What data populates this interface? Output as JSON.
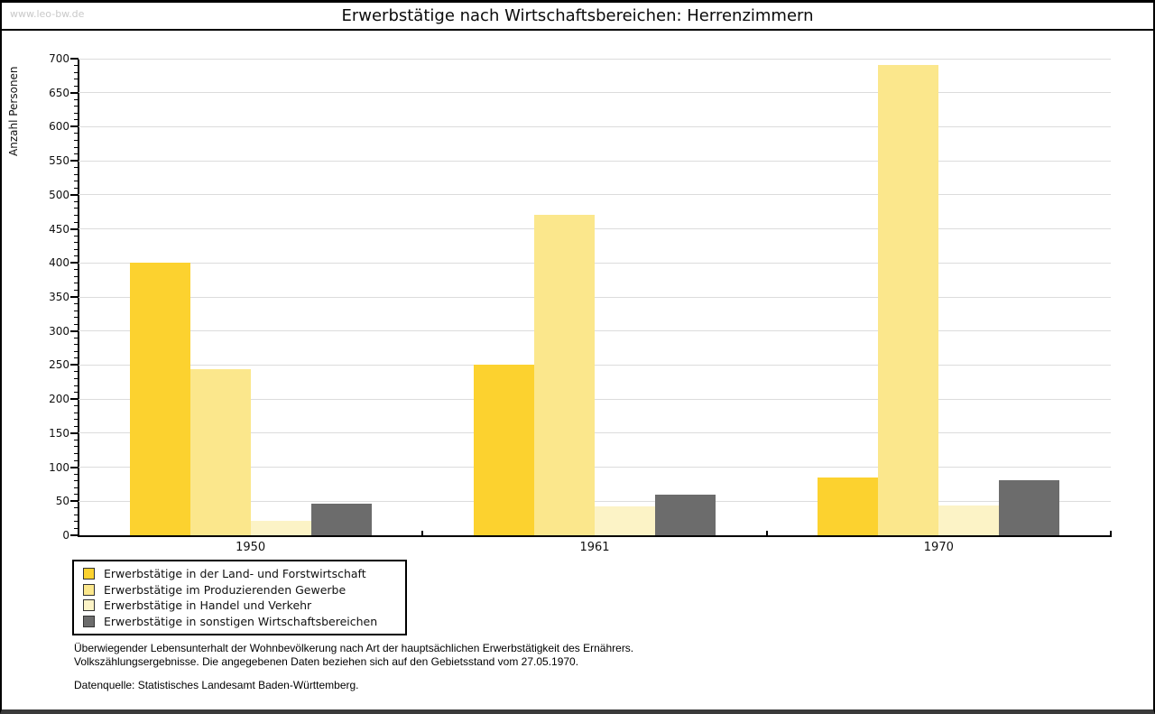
{
  "page": {
    "watermark": "www.leo-bw.de"
  },
  "chart_data": {
    "type": "bar",
    "title": "Erwerbstätige nach Wirtschaftsbereichen: Herrenzimmern",
    "xlabel": "",
    "ylabel": "Anzahl Personen",
    "categories": [
      "1950",
      "1961",
      "1970"
    ],
    "series": [
      {
        "name": "Erwerbstätige in der Land- und Forstwirtschaft",
        "color": "#FCD22F",
        "values": [
          400,
          250,
          85
        ]
      },
      {
        "name": "Erwerbstätige im Produzierenden Gewerbe",
        "color": "#FBE78C",
        "values": [
          244,
          470,
          691
        ]
      },
      {
        "name": "Erwerbstätige in Handel und Verkehr",
        "color": "#FCF3C6",
        "values": [
          21,
          42,
          44
        ]
      },
      {
        "name": "Erwerbstätige in sonstigen Wirtschaftsbereichen",
        "color": "#6C6C6C",
        "values": [
          47,
          60,
          81
        ]
      }
    ],
    "ylim": [
      0,
      700
    ],
    "yticks": [
      0,
      50,
      100,
      150,
      200,
      250,
      300,
      350,
      400,
      450,
      500,
      550,
      600,
      650,
      700
    ],
    "minor_tick_step": 10,
    "grid": true,
    "grid_color": "#dcdcdc",
    "legend_position": "bottom-left"
  },
  "footer": {
    "line1": "Überwiegender Lebensunterhalt der Wohnbevölkerung nach Art der hauptsächlichen Erwerbstätigkeit des Ernährers.",
    "line2": "Volkszählungsergebnisse. Die angegebenen Daten beziehen sich auf den Gebietsstand vom 27.05.1970.",
    "source": "Datenquelle: Statistisches Landesamt Baden-Württemberg."
  }
}
